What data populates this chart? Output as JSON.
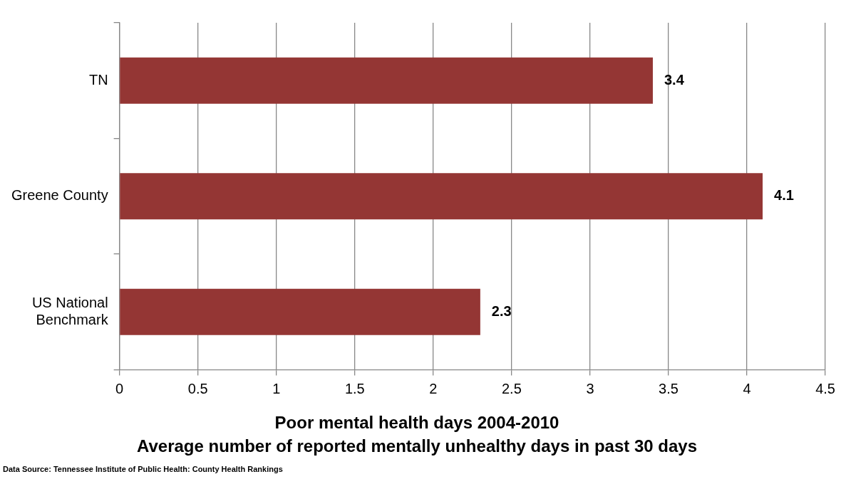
{
  "chart_data": {
    "type": "bar",
    "orientation": "horizontal",
    "title": "Poor mental health days 2004-2010",
    "subtitle": "Average number of reported mentally unhealthy days in past 30 days",
    "categories": [
      "TN",
      "Greene County",
      "US National Benchmark"
    ],
    "values": [
      3.4,
      4.1,
      2.3
    ],
    "color": "#943634",
    "data_labels": true,
    "xlim": [
      0,
      4.5
    ],
    "xticks": [
      0,
      0.5,
      1,
      1.5,
      2,
      2.5,
      3,
      3.5,
      4,
      4.5
    ],
    "grid": "x",
    "legend": false,
    "annotations": [
      "Data Source: Tennessee Institute of Public Health: County Health Rankings"
    ]
  }
}
